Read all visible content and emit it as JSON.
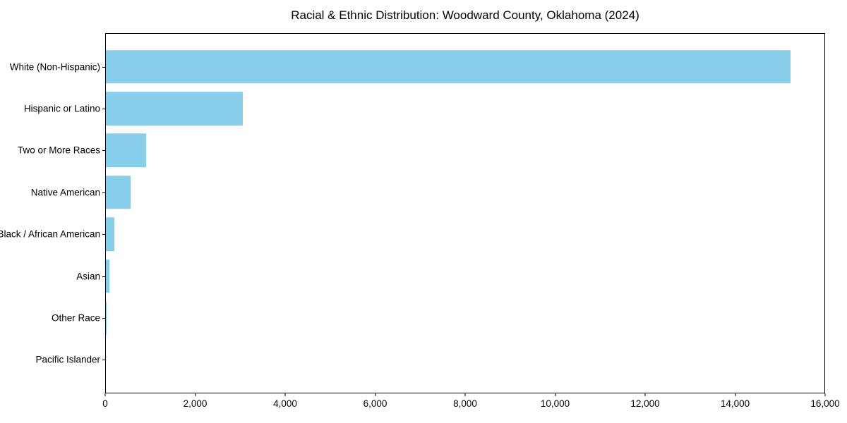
{
  "chart_data": {
    "type": "bar",
    "orientation": "horizontal",
    "title": "Racial & Ethnic Distribution: Woodward County, Oklahoma (2024)",
    "categories": [
      "White (Non-Hispanic)",
      "Hispanic or Latino",
      "Two or More Races",
      "Native American",
      "Black / African American",
      "Asian",
      "Other Race",
      "Pacific Islander"
    ],
    "values": [
      15250,
      3050,
      900,
      550,
      190,
      80,
      15,
      5
    ],
    "xlabel": "",
    "ylabel": "",
    "xlim": [
      0,
      16000
    ],
    "xticks": [
      0,
      2000,
      4000,
      6000,
      8000,
      10000,
      12000,
      14000,
      16000
    ],
    "xtick_labels": [
      "0",
      "2,000",
      "4,000",
      "6,000",
      "8,000",
      "10,000",
      "12,000",
      "14,000",
      "16,000"
    ],
    "grid": false,
    "legend": "none",
    "bar_color": "#87CEEB",
    "spine_color": "#000000",
    "background_color": "#FFFFFF"
  }
}
